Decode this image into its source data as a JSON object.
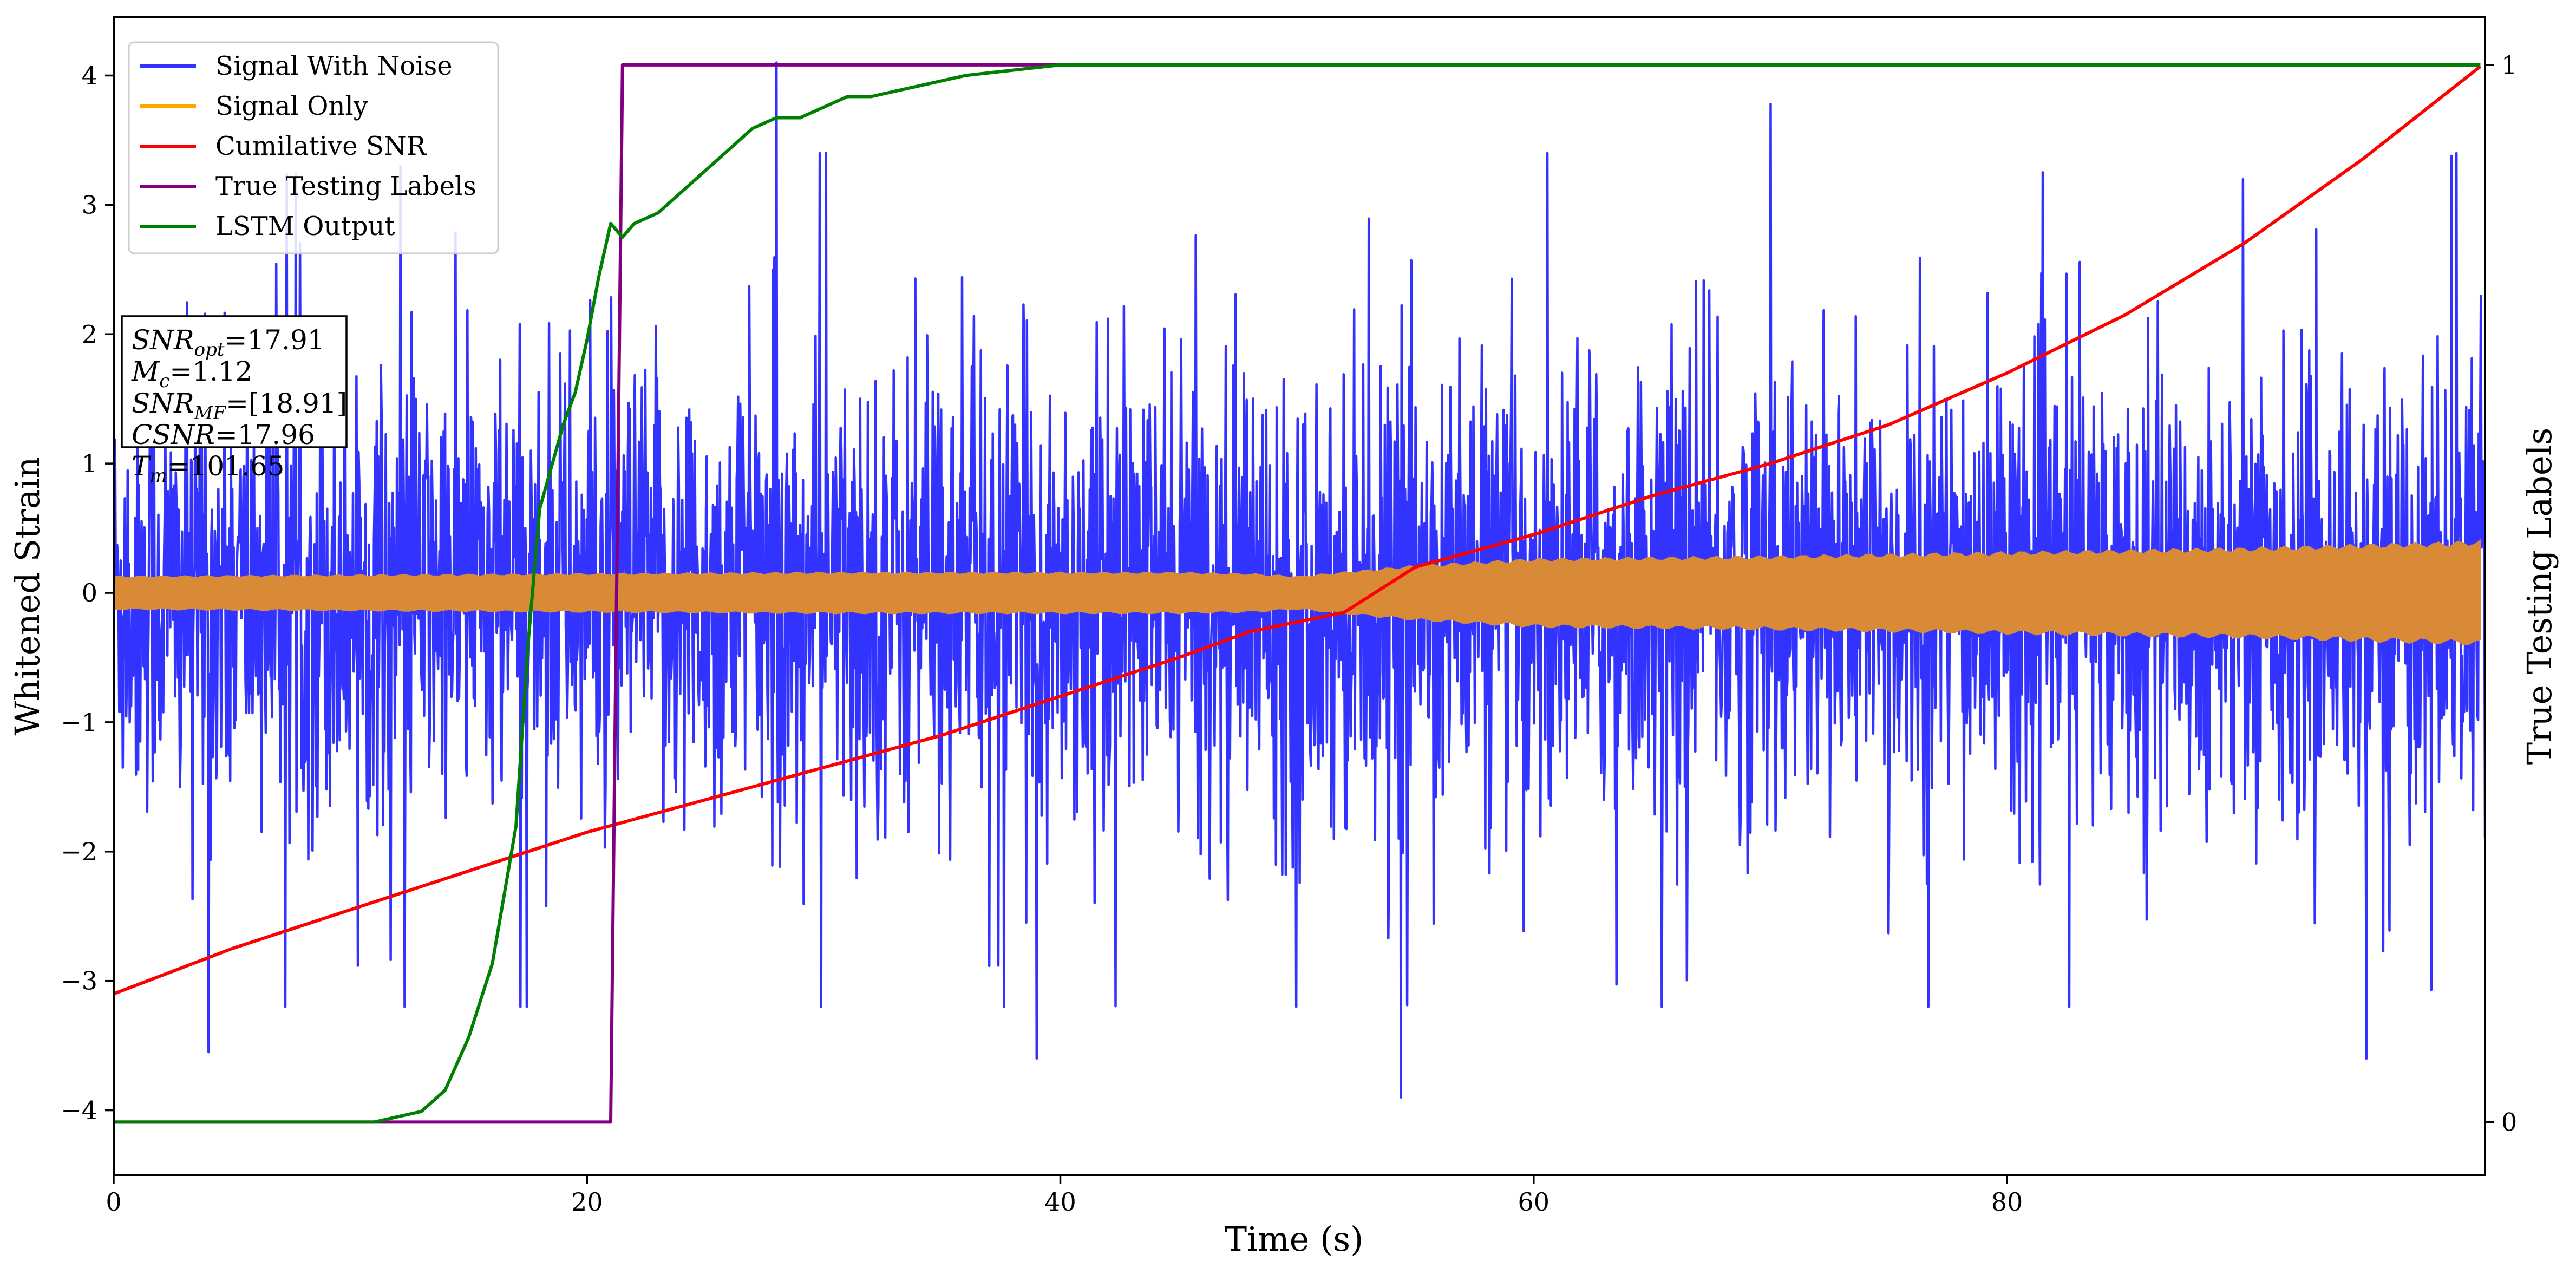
{
  "chart_data": {
    "type": "line",
    "title": "",
    "xlabel": "Time (s)",
    "ylabel": "Whitened Strain",
    "ylabel_right": "True Testing Labels",
    "xlim": [
      0,
      100.2
    ],
    "ylim": [
      -4.5,
      4.45
    ],
    "ylim_right": [
      -0.05,
      1.045
    ],
    "x_ticks": [
      0,
      20,
      40,
      60,
      80
    ],
    "y_ticks": [
      -4,
      -3,
      -2,
      -1,
      0,
      1,
      2,
      3,
      4
    ],
    "y_right_ticks": [
      0,
      1
    ],
    "grid": false,
    "legend": "top-left",
    "series": [
      {
        "name": "Signal With Noise",
        "axis": "left",
        "color": "#3333ff",
        "kind": "noise",
        "x_range": [
          0,
          100.2
        ],
        "typical_band": [
          -1.3,
          1.3
        ],
        "notable_peaks": [
          {
            "x": 4.0,
            "y": -3.55
          },
          {
            "x": 28.0,
            "y": 4.1
          },
          {
            "x": 39.0,
            "y": -3.6
          },
          {
            "x": 54.4,
            "y": -3.9
          },
          {
            "x": 70.0,
            "y": 3.78
          },
          {
            "x": 95.2,
            "y": -3.6
          },
          {
            "x": 99.0,
            "y": 3.4
          }
        ]
      },
      {
        "name": "Signal Only",
        "axis": "left",
        "color": "#ffa500",
        "kind": "envelope",
        "x": [
          0,
          10,
          20,
          30,
          40,
          45,
          48,
          50,
          55,
          60,
          70,
          80,
          90,
          100
        ],
        "amplitude": [
          0.12,
          0.13,
          0.14,
          0.15,
          0.15,
          0.15,
          0.14,
          0.12,
          0.2,
          0.25,
          0.27,
          0.3,
          0.33,
          0.38
        ]
      },
      {
        "name": "Cumilative SNR",
        "axis": "left",
        "color": "#ff0000",
        "x": [
          0,
          5,
          10,
          15,
          20,
          25,
          30,
          35,
          40,
          45,
          48,
          52,
          55,
          60,
          65,
          70,
          75,
          80,
          85,
          90,
          95,
          100
        ],
        "y": [
          -3.1,
          -2.75,
          -2.45,
          -2.15,
          -1.85,
          -1.6,
          -1.35,
          -1.1,
          -0.8,
          -0.5,
          -0.3,
          -0.15,
          0.2,
          0.45,
          0.75,
          1.0,
          1.3,
          1.7,
          2.15,
          2.7,
          3.35,
          4.07
        ]
      },
      {
        "name": "True Testing Labels",
        "axis": "right",
        "color": "#800080",
        "x": [
          0,
          21.0,
          21.5,
          100
        ],
        "y": [
          0,
          0,
          1,
          1
        ]
      },
      {
        "name": "LSTM Output",
        "axis": "right",
        "color": "#008000",
        "x": [
          0,
          11,
          13,
          14,
          15,
          16,
          17,
          17.5,
          18,
          18.5,
          19,
          19.5,
          20,
          20.5,
          21,
          21.5,
          22,
          23,
          24,
          25,
          26,
          27,
          28,
          29,
          30,
          31,
          32,
          34,
          36,
          38,
          40,
          42,
          44,
          100
        ],
        "y": [
          0,
          0,
          0.01,
          0.03,
          0.08,
          0.15,
          0.28,
          0.45,
          0.58,
          0.62,
          0.66,
          0.69,
          0.74,
          0.8,
          0.85,
          0.837,
          0.85,
          0.86,
          0.88,
          0.9,
          0.92,
          0.94,
          0.95,
          0.95,
          0.96,
          0.97,
          0.97,
          0.98,
          0.99,
          0.995,
          1.0,
          1.0,
          1.0,
          1.0
        ]
      }
    ],
    "info_box": {
      "lines": [
        "SNR_opt=17.91",
        "M_c=1.12",
        "SNR_MF=[18.91]",
        "CSNR=17.96",
        "T_m=101.65"
      ]
    }
  }
}
